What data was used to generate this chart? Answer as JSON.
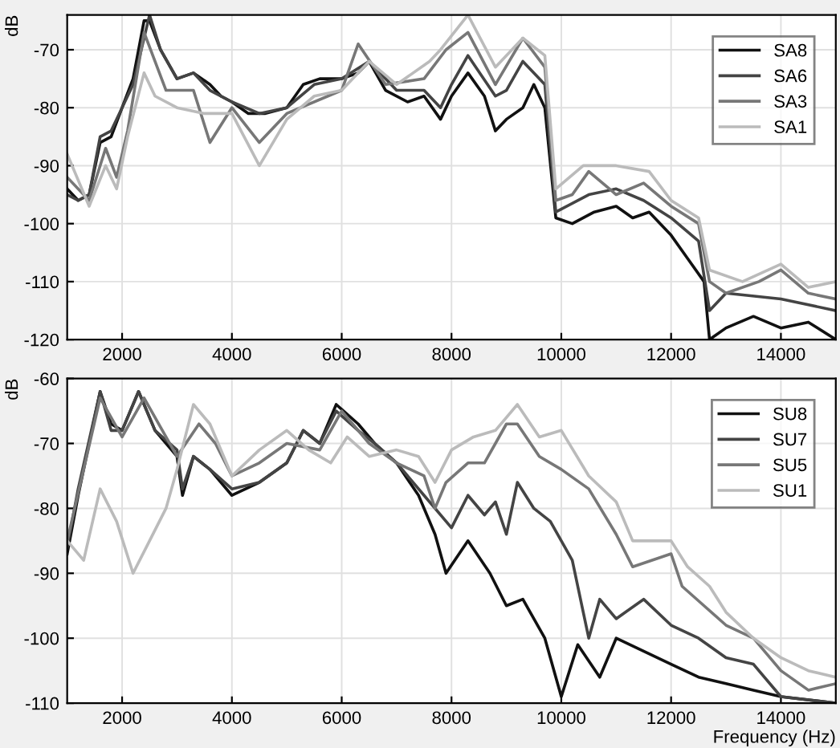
{
  "chart_data": [
    {
      "type": "line",
      "ylabel": "dB",
      "xlim": [
        1000,
        15000
      ],
      "ylim": [
        -120,
        -64
      ],
      "xticks": [
        2000,
        4000,
        6000,
        8000,
        10000,
        12000,
        14000
      ],
      "yticks": [
        -120,
        -110,
        -100,
        -90,
        -80,
        -70
      ],
      "grid": true,
      "legend": "top right",
      "series": [
        {
          "name": "SA8",
          "color": "#111111",
          "x": [
            1000,
            1200,
            1400,
            1600,
            1800,
            2000,
            2200,
            2400,
            2500,
            2700,
            3000,
            3300,
            3600,
            3800,
            4000,
            4300,
            4600,
            5000,
            5300,
            5600,
            6000,
            6300,
            6500,
            6800,
            7200,
            7500,
            7800,
            8000,
            8300,
            8600,
            8800,
            9000,
            9300,
            9500,
            9700,
            9900,
            10200,
            10600,
            11000,
            11300,
            11600,
            12000,
            12300,
            12600,
            12700,
            13000,
            13500,
            14000,
            14500,
            15000
          ],
          "values": [
            -94,
            -96,
            -95,
            -86,
            -85,
            -80,
            -75,
            -65,
            -65,
            -70,
            -75,
            -74,
            -76,
            -78,
            -79,
            -81,
            -81,
            -80,
            -76,
            -75,
            -75,
            -74,
            -72,
            -77,
            -79,
            -78,
            -82,
            -78,
            -74,
            -78,
            -84,
            -82,
            -80,
            -76,
            -80,
            -99,
            -100,
            -98,
            -97,
            -99,
            -98,
            -102,
            -106,
            -110,
            -120,
            -118,
            -116,
            -118,
            -117,
            -120
          ]
        },
        {
          "name": "SA6",
          "color": "#444444",
          "x": [
            1000,
            1200,
            1400,
            1600,
            1800,
            2000,
            2200,
            2500,
            2700,
            3000,
            3300,
            3600,
            4000,
            4500,
            5000,
            5500,
            6000,
            6500,
            7000,
            7500,
            7800,
            8000,
            8300,
            8800,
            9000,
            9300,
            9700,
            9900,
            10500,
            11000,
            11500,
            12000,
            12500,
            12700,
            13000,
            14000,
            15000
          ],
          "values": [
            -95,
            -96,
            -95,
            -85,
            -84,
            -80,
            -76,
            -64,
            -70,
            -75,
            -74,
            -77,
            -79,
            -81,
            -80,
            -76,
            -75,
            -72,
            -77,
            -77,
            -80,
            -76,
            -71,
            -78,
            -77,
            -72,
            -76,
            -98,
            -95,
            -94,
            -96,
            -99,
            -103,
            -115,
            -112,
            -113,
            -115
          ]
        },
        {
          "name": "SA3",
          "color": "#777777",
          "x": [
            1000,
            1400,
            1700,
            1900,
            2100,
            2400,
            2800,
            3300,
            3600,
            4000,
            4500,
            5000,
            6000,
            6300,
            6800,
            7500,
            7900,
            8300,
            8800,
            9300,
            9700,
            9900,
            10200,
            10500,
            11000,
            11500,
            12000,
            12500,
            12700,
            13000,
            13600,
            14000,
            14500,
            15000
          ],
          "values": [
            -92,
            -96,
            -87,
            -92,
            -84,
            -67,
            -77,
            -77,
            -86,
            -80,
            -86,
            -81,
            -77,
            -69,
            -76,
            -75,
            -70,
            -67,
            -76,
            -68,
            -73,
            -96,
            -95,
            -91,
            -95,
            -93,
            -97,
            -100,
            -110,
            -112,
            -110,
            -108,
            -112,
            -113
          ]
        },
        {
          "name": "SA1",
          "color": "#bbbbbb",
          "x": [
            1000,
            1400,
            1700,
            1900,
            2100,
            2400,
            2600,
            3000,
            3500,
            4000,
            4500,
            5000,
            5500,
            6000,
            6500,
            7000,
            7600,
            7800,
            8300,
            8800,
            9300,
            9700,
            9900,
            10400,
            11000,
            11600,
            12000,
            12500,
            12700,
            13300,
            14000,
            14500,
            15000
          ],
          "values": [
            -88,
            -97,
            -90,
            -94,
            -85,
            -74,
            -78,
            -80,
            -81,
            -81,
            -90,
            -82,
            -78,
            -77,
            -72,
            -76,
            -72,
            -70,
            -64,
            -73,
            -68,
            -71,
            -94,
            -90,
            -90,
            -91,
            -96,
            -99,
            -108,
            -110,
            -107,
            -111,
            -110
          ]
        }
      ]
    },
    {
      "type": "line",
      "xlabel": "Frequency (Hz)",
      "ylabel": "dB",
      "xlim": [
        1000,
        15000
      ],
      "ylim": [
        -110,
        -60
      ],
      "xticks": [
        2000,
        4000,
        6000,
        8000,
        10000,
        12000,
        14000
      ],
      "yticks": [
        -110,
        -100,
        -90,
        -80,
        -70,
        -60
      ],
      "grid": true,
      "legend": "top right",
      "series": [
        {
          "name": "SU8",
          "color": "#111111",
          "x": [
            1000,
            1200,
            1600,
            1800,
            2000,
            2300,
            2600,
            3000,
            3100,
            3300,
            3600,
            4000,
            4500,
            5000,
            5300,
            5600,
            5900,
            6300,
            6600,
            7000,
            7400,
            7700,
            7900,
            8300,
            8700,
            9000,
            9300,
            9700,
            10000,
            10300,
            10700,
            11000,
            11500,
            12000,
            12500,
            13000,
            13500,
            14000,
            15000
          ],
          "values": [
            -87,
            -78,
            -62,
            -67,
            -68,
            -62,
            -68,
            -72,
            -78,
            -72,
            -74,
            -78,
            -76,
            -73,
            -68,
            -70,
            -64,
            -67,
            -70,
            -73,
            -78,
            -84,
            -90,
            -85,
            -90,
            -95,
            -94,
            -100,
            -109,
            -101,
            -106,
            -100,
            -102,
            -104,
            -106,
            -107,
            -108,
            -109,
            -110
          ]
        },
        {
          "name": "SU7",
          "color": "#444444",
          "x": [
            1000,
            1200,
            1600,
            1800,
            2000,
            2300,
            2600,
            3000,
            3100,
            3300,
            3600,
            4000,
            4500,
            5000,
            5300,
            5600,
            5900,
            6300,
            6600,
            7000,
            7500,
            8000,
            8300,
            8600,
            8800,
            9000,
            9200,
            9500,
            9800,
            10200,
            10500,
            10700,
            11000,
            11500,
            12000,
            12500,
            13000,
            13500,
            14000,
            15000
          ],
          "values": [
            -86,
            -77,
            -62,
            -68,
            -68,
            -62,
            -68,
            -71,
            -77,
            -72,
            -74,
            -77,
            -76,
            -73,
            -68,
            -70,
            -65,
            -68,
            -70,
            -73,
            -78,
            -83,
            -78,
            -81,
            -79,
            -84,
            -76,
            -80,
            -82,
            -88,
            -100,
            -94,
            -97,
            -94,
            -98,
            -100,
            -103,
            -104,
            -109,
            -110
          ]
        },
        {
          "name": "SU5",
          "color": "#777777",
          "x": [
            1000,
            1600,
            2000,
            2400,
            3000,
            3400,
            3700,
            4000,
            4500,
            5000,
            5600,
            6000,
            6500,
            7000,
            7500,
            7700,
            7900,
            8300,
            8600,
            9000,
            9200,
            9600,
            10000,
            10500,
            11000,
            11300,
            12000,
            12200,
            12600,
            13000,
            13500,
            14000,
            14500,
            15000
          ],
          "values": [
            -85,
            -63,
            -69,
            -63,
            -72,
            -67,
            -70,
            -75,
            -73,
            -70,
            -71,
            -65,
            -70,
            -73,
            -75,
            -80,
            -76,
            -73,
            -73,
            -67,
            -67,
            -72,
            -74,
            -77,
            -84,
            -89,
            -87,
            -92,
            -95,
            -98,
            -100,
            -105,
            -108,
            -107
          ]
        },
        {
          "name": "SU1",
          "color": "#bbbbbb",
          "x": [
            1000,
            1300,
            1600,
            1900,
            2200,
            2500,
            2800,
            3000,
            3300,
            3600,
            4000,
            4500,
            5000,
            5400,
            5800,
            6100,
            6500,
            7000,
            7400,
            7700,
            8000,
            8400,
            8800,
            9200,
            9600,
            10000,
            10500,
            11000,
            11300,
            12000,
            12300,
            12700,
            13000,
            13500,
            14000,
            14500,
            15000
          ],
          "values": [
            -85,
            -88,
            -77,
            -82,
            -90,
            -85,
            -80,
            -74,
            -64,
            -67,
            -75,
            -71,
            -68,
            -71,
            -73,
            -69,
            -72,
            -71,
            -72,
            -76,
            -71,
            -69,
            -68,
            -64,
            -69,
            -68,
            -75,
            -79,
            -85,
            -85,
            -89,
            -92,
            -96,
            -100,
            -103,
            -105,
            -106
          ]
        }
      ]
    }
  ]
}
